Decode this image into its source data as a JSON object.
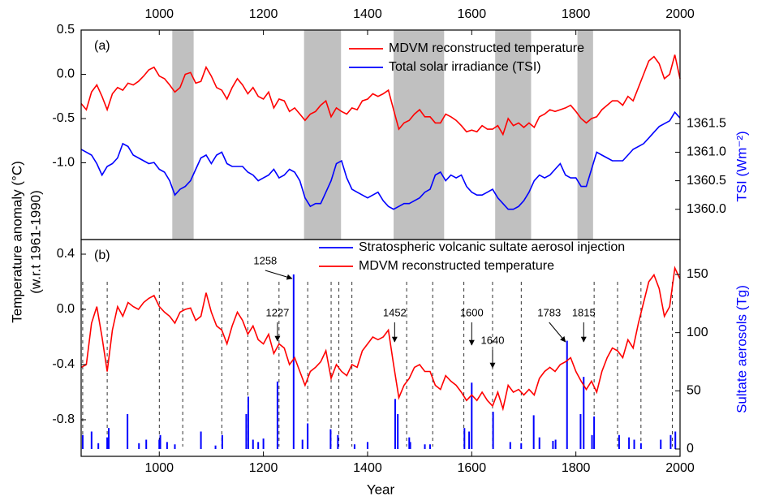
{
  "chart_data": [
    {
      "type": "line",
      "panel_label": "(a)",
      "xlim": [
        850,
        2000
      ],
      "xticks": [
        1000,
        1200,
        1400,
        1600,
        1800,
        2000
      ],
      "ylim": [
        -1.867,
        0.5
      ],
      "yticks": [
        0.5,
        {
          "value": 0,
          "label": "0.0"
        },
        -0.5,
        {
          "value": -1,
          "label": "-1.0"
        }
      ],
      "y2lim": [
        1359.47,
        1363.14
      ],
      "y2ticks": [
        1361.5,
        {
          "value": 1361,
          "label": "1361.0"
        },
        1360.5,
        {
          "value": 1360,
          "label": "1360.0"
        }
      ],
      "y2label": "TSI (Wm⁻²)",
      "shaded_periods": [
        [
          1025,
          1066
        ],
        [
          1278,
          1349
        ],
        [
          1450,
          1547
        ],
        [
          1645,
          1714
        ],
        [
          1803,
          1833
        ]
      ],
      "shade_color": "#c0c0c0",
      "x": [
        850,
        860,
        870,
        880,
        890,
        900,
        910,
        920,
        930,
        940,
        950,
        960,
        970,
        980,
        990,
        1000,
        1010,
        1020,
        1030,
        1040,
        1050,
        1060,
        1070,
        1080,
        1090,
        1100,
        1110,
        1120,
        1130,
        1140,
        1150,
        1160,
        1170,
        1180,
        1190,
        1200,
        1210,
        1220,
        1230,
        1240,
        1250,
        1260,
        1270,
        1280,
        1290,
        1300,
        1310,
        1320,
        1330,
        1340,
        1350,
        1360,
        1370,
        1380,
        1390,
        1400,
        1410,
        1420,
        1430,
        1440,
        1450,
        1460,
        1470,
        1480,
        1490,
        1500,
        1510,
        1520,
        1530,
        1540,
        1550,
        1560,
        1570,
        1580,
        1590,
        1600,
        1610,
        1620,
        1630,
        1640,
        1650,
        1660,
        1670,
        1680,
        1690,
        1700,
        1710,
        1720,
        1730,
        1740,
        1750,
        1760,
        1770,
        1780,
        1790,
        1800,
        1810,
        1820,
        1830,
        1840,
        1850,
        1860,
        1870,
        1880,
        1890,
        1900,
        1910,
        1920,
        1930,
        1940,
        1950,
        1960,
        1970,
        1980,
        1990,
        2000
      ],
      "series": [
        {
          "name": "MDVM reconstructed temperature",
          "color": "#ff0000",
          "values": [
            -0.33,
            -0.4,
            -0.2,
            -0.12,
            -0.25,
            -0.4,
            -0.22,
            -0.15,
            -0.18,
            -0.1,
            -0.12,
            -0.08,
            -0.02,
            0.05,
            0.08,
            -0.02,
            -0.05,
            -0.12,
            -0.2,
            -0.15,
            0,
            0.02,
            -0.1,
            -0.08,
            0.08,
            -0.02,
            -0.15,
            -0.18,
            -0.28,
            -0.15,
            -0.05,
            -0.12,
            -0.22,
            -0.15,
            -0.25,
            -0.28,
            -0.2,
            -0.38,
            -0.28,
            -0.3,
            -0.42,
            -0.38,
            -0.45,
            -0.52,
            -0.45,
            -0.42,
            -0.35,
            -0.3,
            -0.48,
            -0.38,
            -0.42,
            -0.45,
            -0.38,
            -0.4,
            -0.3,
            -0.28,
            -0.22,
            -0.25,
            -0.22,
            -0.18,
            -0.4,
            -0.62,
            -0.55,
            -0.52,
            -0.45,
            -0.4,
            -0.48,
            -0.48,
            -0.55,
            -0.55,
            -0.45,
            -0.48,
            -0.52,
            -0.58,
            -0.65,
            -0.63,
            -0.65,
            -0.58,
            -0.62,
            -0.62,
            -0.58,
            -0.68,
            -0.5,
            -0.58,
            -0.55,
            -0.6,
            -0.55,
            -0.6,
            -0.48,
            -0.45,
            -0.4,
            -0.42,
            -0.4,
            -0.38,
            -0.35,
            -0.42,
            -0.5,
            -0.55,
            -0.5,
            -0.48,
            -0.4,
            -0.35,
            -0.3,
            -0.3,
            -0.35,
            -0.25,
            -0.3,
            -0.15,
            0,
            0.15,
            0.2,
            0.12,
            -0.05,
            0,
            0.22,
            -0.05
          ]
        },
        {
          "name": "Total solar irradiance (TSI)",
          "color": "#0000ff",
          "axis": "y2",
          "values": [
            1361.05,
            1361,
            1360.95,
            1360.8,
            1360.6,
            1360.75,
            1360.8,
            1360.9,
            1361.15,
            1361.1,
            1360.95,
            1360.9,
            1360.85,
            1360.8,
            1360.82,
            1360.7,
            1360.65,
            1360.5,
            1360.25,
            1360.35,
            1360.4,
            1360.5,
            1360.7,
            1360.9,
            1360.95,
            1360.8,
            1360.95,
            1361,
            1360.8,
            1360.75,
            1360.75,
            1360.75,
            1360.65,
            1360.6,
            1360.5,
            1360.55,
            1360.6,
            1360.7,
            1360.55,
            1360.6,
            1360.7,
            1360.65,
            1360.5,
            1360.2,
            1360.05,
            1360.1,
            1360.1,
            1360.3,
            1360.5,
            1360.8,
            1360.85,
            1360.55,
            1360.35,
            1360.3,
            1360.25,
            1360.2,
            1360.25,
            1360.3,
            1360.15,
            1360.05,
            1360,
            1360.05,
            1360.1,
            1360.1,
            1360.15,
            1360.2,
            1360.3,
            1360.35,
            1360.6,
            1360.65,
            1360.5,
            1360.6,
            1360.55,
            1360.6,
            1360.4,
            1360.3,
            1360.25,
            1360.25,
            1360.3,
            1360.35,
            1360.2,
            1360.1,
            1360,
            1360,
            1360.05,
            1360.15,
            1360.3,
            1360.5,
            1360.6,
            1360.55,
            1360.6,
            1360.7,
            1360.8,
            1360.6,
            1360.55,
            1360.55,
            1360.4,
            1360.4,
            1360.7,
            1361,
            1360.95,
            1360.9,
            1360.85,
            1360.85,
            1360.85,
            1360.95,
            1361.05,
            1361.1,
            1361.15,
            1361.25,
            1361.35,
            1361.45,
            1361.5,
            1361.55,
            1361.7,
            1361.6
          ]
        }
      ]
    },
    {
      "type": "line",
      "panel_label": "(b)",
      "xlim": [
        850,
        2000
      ],
      "xticks": [
        1000,
        1200,
        1400,
        1600,
        1800,
        2000
      ],
      "xlabel": "Year",
      "ylim": [
        -1.065,
        0.506
      ],
      "yticks": [
        0.4,
        {
          "value": 0,
          "label": "0.0"
        },
        -0.4,
        -0.8
      ],
      "ylabel": [
        "Temperature anomaly (°C)",
        "(w.r.t 1961-1990)"
      ],
      "y2lim": [
        -6.3,
        180
      ],
      "y2ticks": [
        0,
        50,
        100,
        150
      ],
      "y2label": "Sultate aerosols (Tg)",
      "dashed_lines": [
        853,
        900,
        1000,
        1045,
        1120,
        1170,
        1230,
        1285,
        1330,
        1345,
        1370,
        1475,
        1525,
        1585,
        1640,
        1695,
        1835,
        1880,
        1925,
        1985
      ],
      "annotated_years": [
        1227,
        1258,
        1452,
        1600,
        1640,
        1783,
        1815
      ],
      "x": [
        850,
        860,
        870,
        880,
        890,
        900,
        910,
        920,
        930,
        940,
        950,
        960,
        970,
        980,
        990,
        1000,
        1010,
        1020,
        1030,
        1040,
        1050,
        1060,
        1070,
        1080,
        1090,
        1100,
        1110,
        1120,
        1130,
        1140,
        1150,
        1160,
        1170,
        1180,
        1190,
        1200,
        1210,
        1220,
        1230,
        1240,
        1250,
        1260,
        1270,
        1280,
        1290,
        1300,
        1310,
        1320,
        1330,
        1340,
        1350,
        1360,
        1370,
        1380,
        1390,
        1400,
        1410,
        1420,
        1430,
        1440,
        1450,
        1460,
        1470,
        1480,
        1490,
        1500,
        1510,
        1520,
        1530,
        1540,
        1550,
        1560,
        1570,
        1580,
        1590,
        1600,
        1610,
        1620,
        1630,
        1640,
        1650,
        1660,
        1670,
        1680,
        1690,
        1700,
        1710,
        1720,
        1730,
        1740,
        1750,
        1760,
        1770,
        1780,
        1790,
        1800,
        1810,
        1820,
        1830,
        1840,
        1850,
        1860,
        1870,
        1880,
        1890,
        1900,
        1910,
        1920,
        1930,
        1940,
        1950,
        1960,
        1970,
        1980,
        1990,
        2000
      ],
      "series": [
        {
          "name": "Stratospheric volcanic sultate aerosol injection",
          "color": "#0000ff",
          "axis": "y2",
          "kind": "spike",
          "x": [
            853,
            870,
            883,
            900,
            903,
            939,
            961,
            975,
            1000,
            1002,
            1015,
            1030,
            1080,
            1108,
            1121,
            1167,
            1171,
            1180,
            1190,
            1200,
            1227,
            1258,
            1275,
            1285,
            1329,
            1343,
            1375,
            1400,
            1453,
            1458,
            1480,
            1482,
            1510,
            1520,
            1586,
            1595,
            1600,
            1641,
            1674,
            1695,
            1719,
            1730,
            1756,
            1761,
            1783,
            1809,
            1815,
            1831,
            1835,
            1883,
            1902,
            1912,
            1925,
            1963,
            1982,
            1991
          ],
          "values": [
            12,
            15,
            5,
            10,
            18,
            30,
            5,
            8,
            8,
            12,
            6,
            4,
            15,
            3,
            12,
            30,
            45,
            8,
            6,
            9,
            58,
            150,
            8,
            22,
            17,
            12,
            4,
            6,
            43,
            30,
            10,
            6,
            4,
            4,
            18,
            15,
            57,
            32,
            6,
            5,
            29,
            10,
            7,
            8,
            93,
            30,
            62,
            12,
            28,
            12,
            10,
            8,
            5,
            8,
            12,
            15
          ]
        },
        {
          "name": "MDVM reconstructed temperature",
          "color": "#ff0000",
          "values": [
            -0.42,
            -0.4,
            -0.1,
            0.02,
            -0.2,
            -0.45,
            -0.15,
            0.02,
            -0.05,
            0.05,
            0.02,
            0.0,
            0.05,
            0.08,
            0.1,
            0.02,
            -0.02,
            -0.05,
            -0.1,
            -0.02,
            0.0,
            0.01,
            -0.08,
            -0.05,
            0.12,
            -0.02,
            -0.12,
            -0.15,
            -0.25,
            -0.12,
            -0.02,
            -0.08,
            -0.18,
            -0.12,
            -0.22,
            -0.25,
            -0.18,
            -0.32,
            -0.25,
            -0.28,
            -0.4,
            -0.35,
            -0.45,
            -0.55,
            -0.45,
            -0.42,
            -0.38,
            -0.3,
            -0.5,
            -0.4,
            -0.45,
            -0.48,
            -0.4,
            -0.42,
            -0.3,
            -0.25,
            -0.2,
            -0.22,
            -0.2,
            -0.15,
            -0.4,
            -0.64,
            -0.55,
            -0.5,
            -0.42,
            -0.4,
            -0.45,
            -0.45,
            -0.55,
            -0.58,
            -0.48,
            -0.52,
            -0.55,
            -0.6,
            -0.66,
            -0.62,
            -0.66,
            -0.6,
            -0.66,
            -0.7,
            -0.6,
            -0.72,
            -0.55,
            -0.6,
            -0.58,
            -0.62,
            -0.58,
            -0.62,
            -0.5,
            -0.45,
            -0.42,
            -0.45,
            -0.4,
            -0.38,
            -0.35,
            -0.45,
            -0.52,
            -0.58,
            -0.52,
            -0.6,
            -0.45,
            -0.35,
            -0.28,
            -0.3,
            -0.35,
            -0.22,
            -0.28,
            -0.1,
            0.05,
            0.2,
            0.25,
            0.15,
            -0.05,
            0.02,
            0.3,
            0.22
          ]
        }
      ]
    }
  ]
}
